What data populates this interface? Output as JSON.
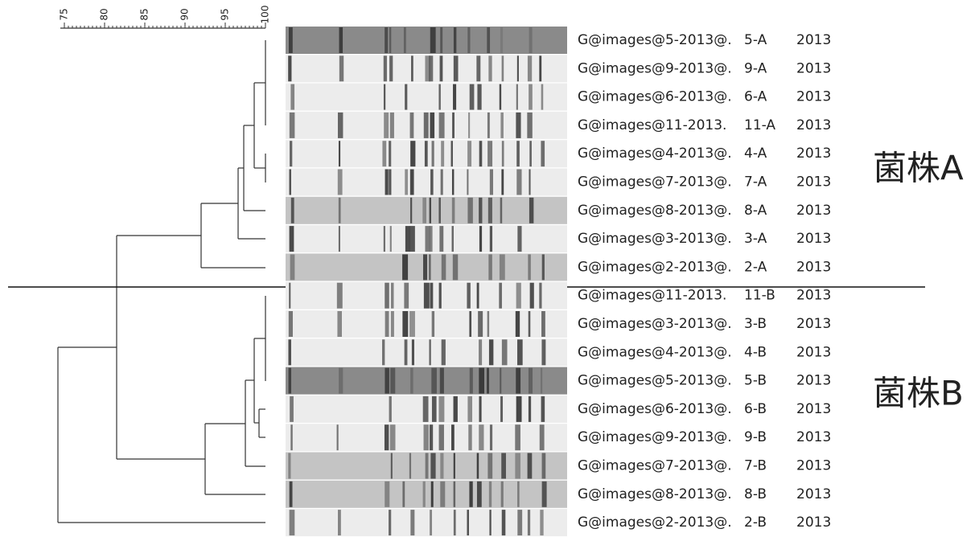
{
  "scale": {
    "ticks": [
      75,
      80,
      85,
      90,
      95,
      100
    ]
  },
  "rows": [
    {
      "name": "G@images@5-2013@.",
      "code": "5-A",
      "year": "2013"
    },
    {
      "name": "G@images@9-2013@.",
      "code": "9-A",
      "year": "2013"
    },
    {
      "name": "G@images@6-2013@.",
      "code": "6-A",
      "year": "2013"
    },
    {
      "name": "G@images@11-2013.",
      "code": "11-A",
      "year": "2013"
    },
    {
      "name": "G@images@4-2013@.",
      "code": "4-A",
      "year": "2013"
    },
    {
      "name": "G@images@7-2013@.",
      "code": "7-A",
      "year": "2013"
    },
    {
      "name": "G@images@8-2013@.",
      "code": "8-A",
      "year": "2013"
    },
    {
      "name": "G@images@3-2013@.",
      "code": "3-A",
      "year": "2013"
    },
    {
      "name": "G@images@2-2013@.",
      "code": "2-A",
      "year": "2013"
    },
    {
      "name": "G@images@11-2013.",
      "code": "11-B",
      "year": "2013"
    },
    {
      "name": "G@images@3-2013@.",
      "code": "3-B",
      "year": "2013"
    },
    {
      "name": "G@images@4-2013@.",
      "code": "4-B",
      "year": "2013"
    },
    {
      "name": "G@images@5-2013@.",
      "code": "5-B",
      "year": "2013"
    },
    {
      "name": "G@images@6-2013@.",
      "code": "6-B",
      "year": "2013"
    },
    {
      "name": "G@images@9-2013@.",
      "code": "9-B",
      "year": "2013"
    },
    {
      "name": "G@images@7-2013@.",
      "code": "7-B",
      "year": "2013"
    },
    {
      "name": "G@images@8-2013@.",
      "code": "8-B",
      "year": "2013"
    },
    {
      "name": "G@images@2-2013@.",
      "code": "2-B",
      "year": "2013"
    }
  ],
  "groups": [
    {
      "label": "菌株A"
    },
    {
      "label": "菌株B"
    }
  ]
}
